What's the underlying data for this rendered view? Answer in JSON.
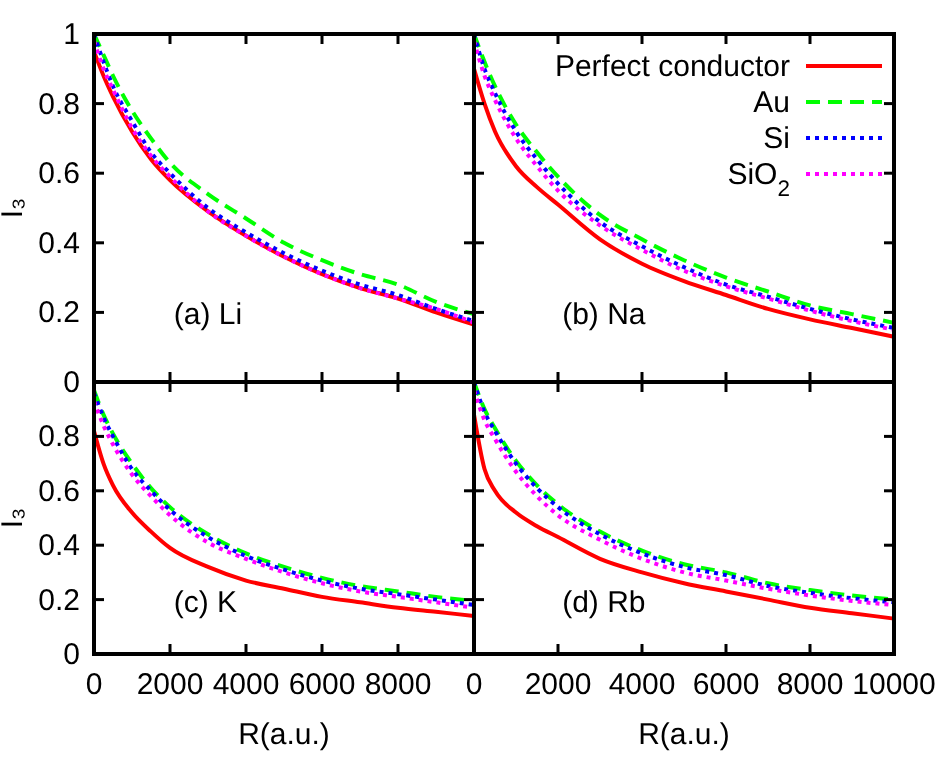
{
  "chart_data": [
    {
      "type": "line",
      "ylabel": "I₃",
      "annotations": [
        "(a) Li"
      ],
      "x": [
        0,
        250,
        500,
        1000,
        1500,
        2000,
        3000,
        4000,
        5000,
        6000,
        7000,
        8000,
        9000,
        10000
      ],
      "xlim": [
        0,
        10000
      ],
      "xticks": [
        0,
        2000,
        4000,
        6000,
        8000,
        10000
      ],
      "ylim": [
        0,
        1
      ],
      "yticks": [
        0,
        0.2,
        0.4,
        0.6,
        0.8,
        1
      ],
      "tick_labels": "y",
      "legend": false,
      "series": [
        {
          "color": "#ff0000",
          "line_style": "solid",
          "values": [
            0.95,
            0.88,
            0.82,
            0.72,
            0.64,
            0.58,
            0.49,
            0.42,
            0.36,
            0.31,
            0.27,
            0.24,
            0.2,
            0.165
          ]
        },
        {
          "color": "#00ff00",
          "line_style": "dashed",
          "values": [
            1.0,
            0.94,
            0.88,
            0.78,
            0.7,
            0.63,
            0.54,
            0.47,
            0.4,
            0.35,
            0.31,
            0.28,
            0.23,
            0.195
          ]
        },
        {
          "color": "#0000ff",
          "line_style": "dotted",
          "values": [
            1.0,
            0.92,
            0.85,
            0.75,
            0.66,
            0.6,
            0.5,
            0.43,
            0.37,
            0.32,
            0.28,
            0.25,
            0.21,
            0.175
          ]
        },
        {
          "color": "#ff00ff",
          "line_style": "dotted",
          "values": [
            0.98,
            0.9,
            0.84,
            0.73,
            0.65,
            0.59,
            0.49,
            0.42,
            0.36,
            0.31,
            0.27,
            0.24,
            0.21,
            0.17
          ]
        }
      ]
    },
    {
      "type": "line",
      "annotations": [
        "(b) Na"
      ],
      "x": [
        0,
        250,
        500,
        1000,
        1500,
        2000,
        3000,
        4000,
        5000,
        6000,
        7000,
        8000,
        9000,
        10000
      ],
      "xlim": [
        0,
        10000
      ],
      "xticks": [
        0,
        2000,
        4000,
        6000,
        8000,
        10000
      ],
      "ylim": [
        0,
        1
      ],
      "yticks": [
        0,
        0.2,
        0.4,
        0.6,
        0.8,
        1
      ],
      "tick_labels": false,
      "legend": "top right",
      "series": [
        {
          "name": "Perfect conductor",
          "color": "#ff0000",
          "line_style": "solid",
          "values": [
            0.9,
            0.8,
            0.72,
            0.62,
            0.56,
            0.51,
            0.41,
            0.34,
            0.29,
            0.25,
            0.21,
            0.18,
            0.155,
            0.13
          ]
        },
        {
          "name": "Au",
          "color": "#00ff00",
          "line_style": "dashed",
          "values": [
            1.0,
            0.92,
            0.85,
            0.74,
            0.66,
            0.59,
            0.48,
            0.41,
            0.35,
            0.3,
            0.26,
            0.22,
            0.195,
            0.17
          ]
        },
        {
          "name": "Si",
          "color": "#0000ff",
          "line_style": "dotted",
          "values": [
            1.0,
            0.9,
            0.83,
            0.72,
            0.64,
            0.57,
            0.46,
            0.39,
            0.33,
            0.28,
            0.245,
            0.21,
            0.18,
            0.155
          ]
        },
        {
          "name": "SiO$_{2}$",
          "color": "#ff00ff",
          "line_style": "dotted",
          "values": [
            0.98,
            0.88,
            0.81,
            0.7,
            0.62,
            0.55,
            0.45,
            0.38,
            0.32,
            0.275,
            0.24,
            0.205,
            0.175,
            0.15
          ]
        }
      ]
    },
    {
      "type": "line",
      "ylabel": "I₃",
      "xlabel": "R(a.u.)",
      "annotations": [
        "(c) K"
      ],
      "x": [
        0,
        250,
        500,
        1000,
        1500,
        2000,
        3000,
        4000,
        5000,
        6000,
        7000,
        8000,
        9000,
        10000
      ],
      "xlim": [
        0,
        10000
      ],
      "xticks": [
        0,
        2000,
        4000,
        6000,
        8000
      ],
      "ylim": [
        0,
        1
      ],
      "yticks": [
        0,
        0.2,
        0.4,
        0.6,
        0.8,
        {
          "value": 1,
          "label": null
        }
      ],
      "legend": false,
      "series": [
        {
          "color": "#ff0000",
          "line_style": "solid",
          "values": [
            0.82,
            0.7,
            0.62,
            0.52,
            0.45,
            0.39,
            0.32,
            0.27,
            0.24,
            0.21,
            0.19,
            0.17,
            0.155,
            0.14
          ]
        },
        {
          "color": "#00ff00",
          "line_style": "dashed",
          "values": [
            0.97,
            0.88,
            0.81,
            0.7,
            0.61,
            0.54,
            0.44,
            0.37,
            0.32,
            0.28,
            0.25,
            0.23,
            0.21,
            0.195
          ]
        },
        {
          "color": "#0000ff",
          "line_style": "dotted",
          "values": [
            0.96,
            0.87,
            0.8,
            0.68,
            0.6,
            0.53,
            0.43,
            0.36,
            0.31,
            0.27,
            0.24,
            0.22,
            0.2,
            0.18
          ]
        },
        {
          "color": "#ff00ff",
          "line_style": "dotted",
          "values": [
            0.93,
            0.84,
            0.77,
            0.66,
            0.58,
            0.51,
            0.41,
            0.35,
            0.3,
            0.26,
            0.23,
            0.21,
            0.19,
            0.17
          ]
        }
      ]
    },
    {
      "type": "line",
      "xlabel": "R(a.u.)",
      "annotations": [
        "(d) Rb"
      ],
      "x": [
        0,
        250,
        500,
        1000,
        1500,
        2000,
        3000,
        4000,
        5000,
        6000,
        7000,
        8000,
        9000,
        10000
      ],
      "xlim": [
        0,
        10000
      ],
      "xticks": [
        0,
        2000,
        4000,
        6000,
        8000,
        10000
      ],
      "ylim": [
        0,
        1
      ],
      "yticks": [
        0,
        0.2,
        0.4,
        0.6,
        0.8,
        1
      ],
      "tick_labels": "x",
      "legend": false,
      "series": [
        {
          "color": "#ff0000",
          "line_style": "solid",
          "values": [
            0.88,
            0.68,
            0.6,
            0.52,
            0.47,
            0.43,
            0.35,
            0.3,
            0.26,
            0.23,
            0.2,
            0.17,
            0.15,
            0.13
          ]
        },
        {
          "color": "#00ff00",
          "line_style": "dashed",
          "values": [
            1.0,
            0.9,
            0.83,
            0.71,
            0.62,
            0.55,
            0.45,
            0.38,
            0.33,
            0.3,
            0.26,
            0.235,
            0.215,
            0.2
          ]
        },
        {
          "color": "#0000ff",
          "line_style": "dotted",
          "values": [
            1.0,
            0.89,
            0.82,
            0.7,
            0.61,
            0.54,
            0.44,
            0.37,
            0.32,
            0.29,
            0.25,
            0.225,
            0.205,
            0.19
          ]
        },
        {
          "color": "#ff00ff",
          "line_style": "dotted",
          "values": [
            0.97,
            0.86,
            0.79,
            0.67,
            0.58,
            0.51,
            0.42,
            0.35,
            0.3,
            0.27,
            0.24,
            0.215,
            0.195,
            0.18
          ]
        }
      ]
    }
  ]
}
